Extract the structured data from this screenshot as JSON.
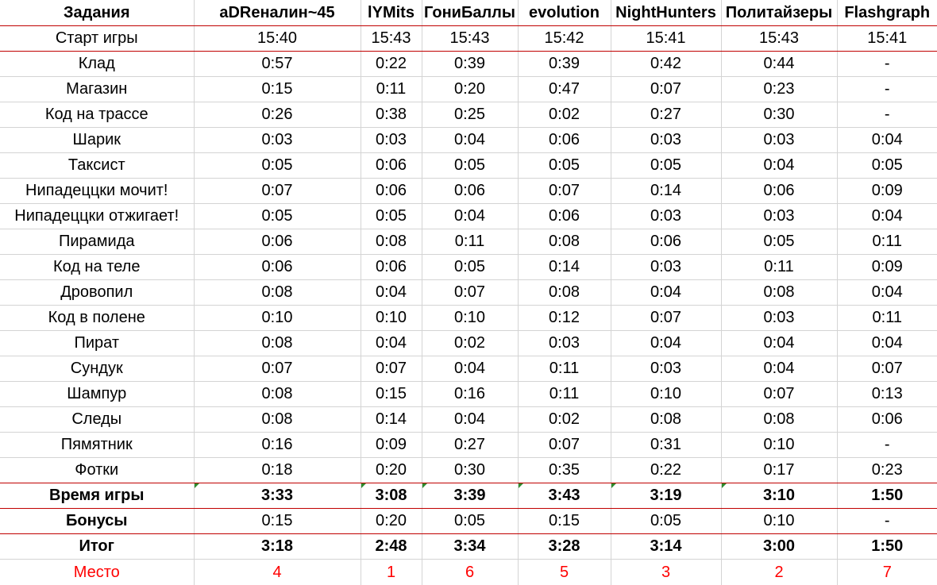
{
  "header": {
    "tasks_label": "Задания",
    "teams": [
      "aDRеналин~45",
      "lYMits",
      "ГониБаллы",
      "evolution",
      "NightHunters",
      "Политайзеры",
      "Flashgraph"
    ]
  },
  "start": {
    "label": "Старт игры",
    "values": [
      "15:40",
      "15:43",
      "15:43",
      "15:42",
      "15:41",
      "15:43",
      "15:41"
    ]
  },
  "tasks": [
    {
      "label": "Клад",
      "values": [
        "0:57",
        "0:22",
        "0:39",
        "0:39",
        "0:42",
        "0:44",
        "-"
      ]
    },
    {
      "label": "Магазин",
      "values": [
        "0:15",
        "0:11",
        "0:20",
        "0:47",
        "0:07",
        "0:23",
        "-"
      ]
    },
    {
      "label": "Код на трассе",
      "values": [
        "0:26",
        "0:38",
        "0:25",
        "0:02",
        "0:27",
        "0:30",
        "-"
      ]
    },
    {
      "label": "Шарик",
      "values": [
        "0:03",
        "0:03",
        "0:04",
        "0:06",
        "0:03",
        "0:03",
        "0:04"
      ]
    },
    {
      "label": "Таксист",
      "values": [
        "0:05",
        "0:06",
        "0:05",
        "0:05",
        "0:05",
        "0:04",
        "0:05"
      ]
    },
    {
      "label": "Нипадеццки мочит!",
      "values": [
        "0:07",
        "0:06",
        "0:06",
        "0:07",
        "0:14",
        "0:06",
        "0:09"
      ]
    },
    {
      "label": "Нипадеццки отжигает!",
      "values": [
        "0:05",
        "0:05",
        "0:04",
        "0:06",
        "0:03",
        "0:03",
        "0:04"
      ]
    },
    {
      "label": "Пирамида",
      "values": [
        "0:06",
        "0:08",
        "0:11",
        "0:08",
        "0:06",
        "0:05",
        "0:11"
      ]
    },
    {
      "label": "Код на теле",
      "values": [
        "0:06",
        "0:06",
        "0:05",
        "0:14",
        "0:03",
        "0:11",
        "0:09"
      ]
    },
    {
      "label": "Дровопил",
      "values": [
        "0:08",
        "0:04",
        "0:07",
        "0:08",
        "0:04",
        "0:08",
        "0:04"
      ]
    },
    {
      "label": "Код в полене",
      "values": [
        "0:10",
        "0:10",
        "0:10",
        "0:12",
        "0:07",
        "0:03",
        "0:11"
      ]
    },
    {
      "label": "Пират",
      "values": [
        "0:08",
        "0:04",
        "0:02",
        "0:03",
        "0:04",
        "0:04",
        "0:04"
      ]
    },
    {
      "label": "Сундук",
      "values": [
        "0:07",
        "0:07",
        "0:04",
        "0:11",
        "0:03",
        "0:04",
        "0:07"
      ]
    },
    {
      "label": "Шампур",
      "values": [
        "0:08",
        "0:15",
        "0:16",
        "0:11",
        "0:10",
        "0:07",
        "0:13"
      ]
    },
    {
      "label": "Следы",
      "values": [
        "0:08",
        "0:14",
        "0:04",
        "0:02",
        "0:08",
        "0:08",
        "0:06"
      ]
    },
    {
      "label": "Пямятник",
      "values": [
        "0:16",
        "0:09",
        "0:27",
        "0:07",
        "0:31",
        "0:10",
        "-"
      ]
    },
    {
      "label": "Фотки",
      "values": [
        "0:18",
        "0:20",
        "0:30",
        "0:35",
        "0:22",
        "0:17",
        "0:23"
      ]
    }
  ],
  "game_time": {
    "label": "Время игры",
    "values": [
      "3:33",
      "3:08",
      "3:39",
      "3:43",
      "3:19",
      "3:10",
      "1:50"
    ]
  },
  "bonuses": {
    "label": "Бонусы",
    "values": [
      "0:15",
      "0:20",
      "0:05",
      "0:15",
      "0:05",
      "0:10",
      "-"
    ]
  },
  "result": {
    "label": "Итог",
    "values": [
      "3:18",
      "2:48",
      "3:34",
      "3:28",
      "3:14",
      "3:00",
      "1:50"
    ]
  },
  "place": {
    "label": "Место",
    "values": [
      "4",
      "1",
      "6",
      "5",
      "3",
      "2",
      "7"
    ]
  },
  "colors": {
    "grid": "#d4d4d4",
    "accent_line": "#c00000",
    "place_text": "#ff0000",
    "cell_marker": "#2e8b2e"
  }
}
